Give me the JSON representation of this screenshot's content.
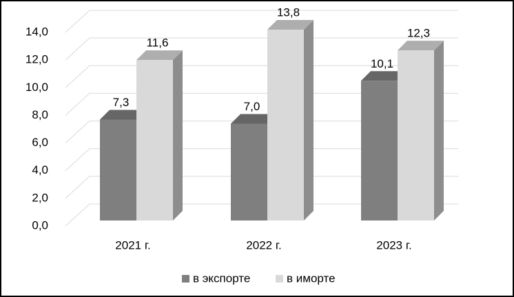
{
  "chart_data": {
    "type": "bar3d",
    "categories": [
      "2021 г.",
      "2022 г.",
      "2023 г."
    ],
    "series": [
      {
        "name": "в экспорте",
        "color": "#7f7f7f",
        "values": [
          7.3,
          7.0,
          10.1
        ],
        "value_labels": [
          "7,3",
          "7,0",
          "10,1"
        ]
      },
      {
        "name": "в иморте",
        "color": "#d9d9d9",
        "values": [
          11.6,
          13.8,
          12.3
        ],
        "value_labels": [
          "11,6",
          "13,8",
          "12,3"
        ]
      }
    ],
    "ylim": [
      0,
      14
    ],
    "yticks": [
      {
        "value": 0,
        "label": "0,0"
      },
      {
        "value": 2,
        "label": "2,0"
      },
      {
        "value": 4,
        "label": "4,0"
      },
      {
        "value": 6,
        "label": "6,0"
      },
      {
        "value": 8,
        "label": "8,0"
      },
      {
        "value": 10,
        "label": "10,0"
      },
      {
        "value": 12,
        "label": "12,0"
      },
      {
        "value": 14,
        "label": "14,0"
      }
    ],
    "grid": true,
    "legend": "bottom"
  }
}
